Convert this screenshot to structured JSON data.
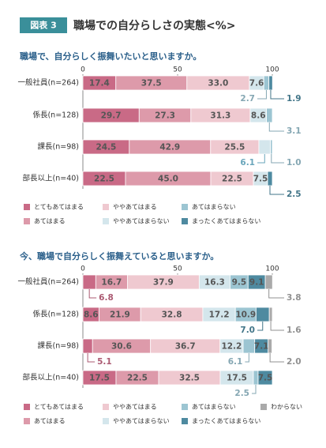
{
  "header": {
    "badge": "図表 3",
    "title": "職場での自分らしさの実態<%>"
  },
  "chart_data": [
    {
      "type": "bar",
      "orientation": "horizontal",
      "stacked": true,
      "title": "職場で、自分らしく振舞いたいと思いますか。",
      "categories": [
        "一般社員(n=264)",
        "係長(n=128)",
        "課長(n=98)",
        "部長以上(n=40)"
      ],
      "xlim": [
        0,
        100
      ],
      "xticks": [
        0,
        50,
        100
      ],
      "series": [
        {
          "name": "とてもあてはまる",
          "color": "#c96a86",
          "values": [
            17.4,
            29.7,
            24.5,
            22.5
          ]
        },
        {
          "name": "あてはまる",
          "color": "#dd9aaa",
          "values": [
            37.5,
            27.3,
            42.9,
            45.0
          ],
          "value_labels": [
            "37.5",
            "27.3",
            "42.9",
            "45.0"
          ]
        },
        {
          "name": "ややあてはまる",
          "color": "#efc9d0",
          "values": [
            33.0,
            31.3,
            25.5,
            22.5
          ],
          "value_labels": [
            "33.0",
            "31.3",
            "25.5",
            "22.5"
          ]
        },
        {
          "name": "ややあてはまらない",
          "color": "#d4e6ec",
          "values": [
            7.6,
            8.6,
            6.1,
            7.5
          ]
        },
        {
          "name": "あてはまらない",
          "color": "#9cc5d2",
          "values": [
            2.7,
            3.1,
            1.0,
            null
          ],
          "value_labels": [
            "2.7",
            "3.1",
            "1.0",
            null
          ]
        },
        {
          "name": "まったくあてはまらない",
          "color": "#4e8aa0",
          "values": [
            1.9,
            null,
            null,
            2.5
          ]
        }
      ]
    },
    {
      "type": "bar",
      "orientation": "horizontal",
      "stacked": true,
      "title": "今、職場で自分らしく振舞えていると思いますか。",
      "categories": [
        "一般社員(n=264)",
        "係長(n=128)",
        "課長(n=98)",
        "部長以上(n=40)"
      ],
      "xlim": [
        0,
        100
      ],
      "xticks": [
        0,
        50,
        100
      ],
      "series": [
        {
          "name": "とてもあてはまる",
          "color": "#c96a86",
          "values": [
            6.8,
            8.6,
            5.1,
            17.5
          ]
        },
        {
          "name": "あてはまる",
          "color": "#dd9aaa",
          "values": [
            16.7,
            21.9,
            30.6,
            22.5
          ]
        },
        {
          "name": "ややあてはまる",
          "color": "#efc9d0",
          "values": [
            37.9,
            32.8,
            36.7,
            32.5
          ]
        },
        {
          "name": "ややあてはまらない",
          "color": "#d4e6ec",
          "values": [
            16.3,
            17.2,
            12.2,
            17.5
          ]
        },
        {
          "name": "あてはまらない",
          "color": "#9cc5d2",
          "values": [
            9.5,
            10.9,
            6.1,
            2.5
          ]
        },
        {
          "name": "まったくあてはまらない",
          "color": "#4e8aa0",
          "values": [
            9.1,
            7.0,
            7.1,
            7.5
          ],
          "value_labels": [
            "9.1",
            "7.0",
            "7.1",
            "7.5"
          ]
        },
        {
          "name": "わからない",
          "color": "#aaaaaa",
          "values": [
            3.8,
            1.6,
            2.0,
            null
          ],
          "value_labels": [
            "3.8",
            "1.6",
            "2.0",
            null
          ]
        }
      ]
    }
  ]
}
